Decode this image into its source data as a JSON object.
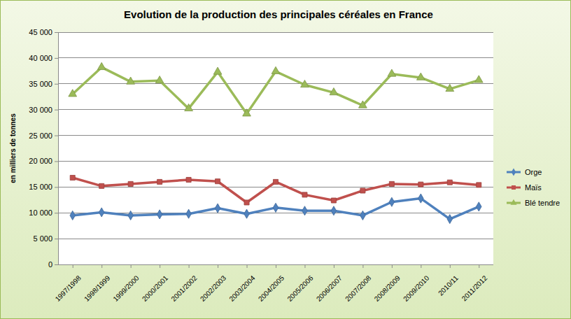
{
  "chart_data": {
    "type": "line",
    "title": "Evolution de la production des principales céréales en France",
    "y_label": "en milliers de tonnes",
    "categories": [
      "1997/1998",
      "1998/1999",
      "1999/2000",
      "2000/2001",
      "2001/2002",
      "2002/2003",
      "2003/2004",
      "2004/2005",
      "2005/2006",
      "2006/2007",
      "2007/2008",
      "2008/2009",
      "2009/2010",
      "2010/11",
      "2011/2012"
    ],
    "series": [
      {
        "name": "Orge",
        "color": "#4f81bd",
        "marker": "diamond",
        "values": [
          9500,
          10100,
          9500,
          9700,
          9800,
          10900,
          9800,
          11000,
          10400,
          10400,
          9500,
          12100,
          12800,
          8800,
          11200
        ]
      },
      {
        "name": "Maïs",
        "color": "#c0504d",
        "marker": "square",
        "values": [
          16800,
          15200,
          15600,
          16000,
          16400,
          16100,
          12000,
          16000,
          13500,
          12400,
          14300,
          15600,
          15500,
          15900,
          15400
        ]
      },
      {
        "name": "Blé tendre",
        "color": "#9bbb59",
        "marker": "triangle",
        "values": [
          33000,
          38200,
          35400,
          35600,
          30200,
          37300,
          29200,
          37400,
          34800,
          33300,
          30800,
          36900,
          36200,
          34000,
          35700
        ]
      }
    ],
    "ylim": [
      0,
      45000
    ],
    "yticks": [
      0,
      {
        "value": 5000,
        "label": "5 000"
      },
      {
        "value": 10000,
        "label": "10 000"
      },
      {
        "value": 15000,
        "label": "15 000"
      },
      {
        "value": 20000,
        "label": "20 000"
      },
      {
        "value": 25000,
        "label": "25 000"
      },
      {
        "value": 30000,
        "label": "30 000"
      },
      {
        "value": 35000,
        "label": "35 000"
      },
      {
        "value": 40000,
        "label": "40 000"
      },
      {
        "value": 45000,
        "label": "45 000"
      }
    ],
    "grid": true,
    "legend": "right"
  }
}
